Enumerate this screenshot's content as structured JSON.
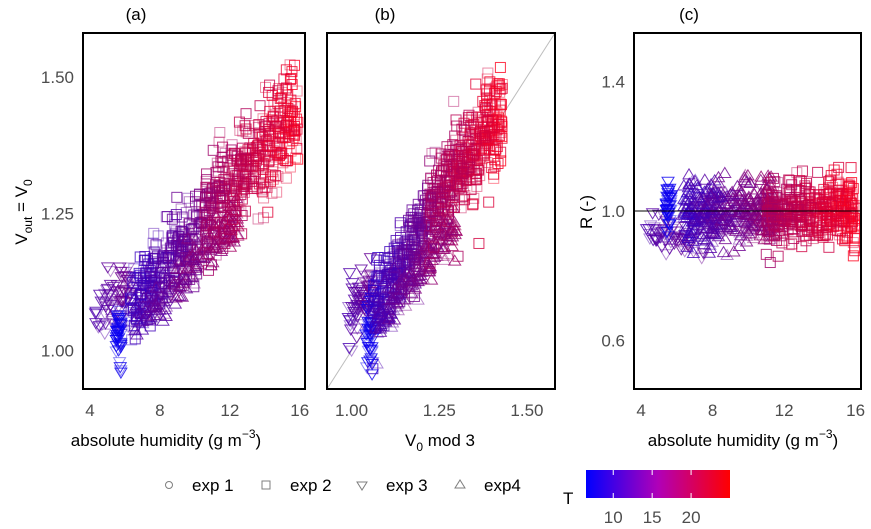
{
  "chart_data": [
    {
      "type": "scatter",
      "title": "(a)",
      "xlabel": "absolute humidity (g m",
      "xlabel_sup": "−3",
      "xlabel_close": ")",
      "ylabel_main": "V",
      "ylabel_sub": "out",
      "ylabel_mid": " = V",
      "ylabel_sub2": "0",
      "xlim": [
        3.6,
        16.3
      ],
      "ylim": [
        0.93,
        1.58
      ],
      "xticks": [
        4,
        8,
        12,
        16
      ],
      "xtick_labels": [
        "4",
        "8",
        "12",
        "16"
      ],
      "yticks": [
        1.0,
        1.25,
        1.5
      ],
      "ytick_labels": [
        "1.00",
        "1.25",
        "1.50"
      ],
      "grid": false,
      "clusters": [
        {
          "experiment": "exp 3",
          "x_range": [
            4.3,
            6.3
          ],
          "y_center_at": [
            [
              4.3,
              1.06
            ],
            [
              6.3,
              1.12
            ]
          ],
          "y_spread": 0.05,
          "T_range": [
            11,
            14
          ],
          "n": 70
        },
        {
          "experiment": "exp 3",
          "x_range": [
            5.5,
            5.8
          ],
          "y_center_at": [
            [
              5.5,
              1.03
            ],
            [
              5.8,
              1.03
            ]
          ],
          "y_spread": 0.05,
          "T_range": [
            7,
            7.5
          ],
          "n": 40
        },
        {
          "experiment": "exp 2",
          "x_range": [
            6.3,
            10.5
          ],
          "y_center_at": [
            [
              6.3,
              1.08
            ],
            [
              10.5,
              1.24
            ]
          ],
          "y_spread": 0.06,
          "T_range": [
            9,
            15
          ],
          "n": 260
        },
        {
          "experiment": "exp4",
          "x_range": [
            6.5,
            12.5
          ],
          "y_center_at": [
            [
              6.5,
              1.05
            ],
            [
              12.5,
              1.24
            ]
          ],
          "y_spread": 0.04,
          "T_range": [
            10,
            18
          ],
          "n": 220
        },
        {
          "experiment": "exp 2",
          "x_range": [
            10.5,
            15.9
          ],
          "y_center_at": [
            [
              10.5,
              1.25
            ],
            [
              15.9,
              1.43
            ]
          ],
          "y_spread": 0.08,
          "T_range": [
            15,
            23
          ],
          "n": 420
        }
      ]
    },
    {
      "type": "scatter",
      "title": "(b)",
      "xlabel_main": "V",
      "xlabel_sub": "0",
      "xlabel_rest": " mod 3",
      "xlim": [
        0.93,
        1.58
      ],
      "ylim": [
        0.93,
        1.58
      ],
      "xticks": [
        1.0,
        1.25,
        1.5
      ],
      "xtick_labels": [
        "1.00",
        "1.25",
        "1.50"
      ],
      "reference_line": "y = x (1:1)",
      "grid": false,
      "clusters": [
        {
          "experiment": "exp 3",
          "x_range": [
            0.99,
            1.06
          ],
          "y_center_at": [
            [
              0.99,
              1.06
            ],
            [
              1.06,
              1.12
            ]
          ],
          "y_spread": 0.05,
          "T_range": [
            11,
            14
          ],
          "n": 70
        },
        {
          "experiment": "exp 3",
          "x_range": [
            1.04,
            1.06
          ],
          "y_center_at": [
            [
              1.04,
              1.03
            ],
            [
              1.06,
              1.03
            ]
          ],
          "y_spread": 0.05,
          "T_range": [
            7,
            7.5
          ],
          "n": 40
        },
        {
          "experiment": "exp 2",
          "x_range": [
            1.06,
            1.22
          ],
          "y_center_at": [
            [
              1.06,
              1.08
            ],
            [
              1.22,
              1.24
            ]
          ],
          "y_spread": 0.06,
          "T_range": [
            9,
            15
          ],
          "n": 260
        },
        {
          "experiment": "exp4",
          "x_range": [
            1.07,
            1.3
          ],
          "y_center_at": [
            [
              1.07,
              1.05
            ],
            [
              1.3,
              1.24
            ]
          ],
          "y_spread": 0.04,
          "T_range": [
            10,
            18
          ],
          "n": 220
        },
        {
          "experiment": "exp 2",
          "x_range": [
            1.22,
            1.43
          ],
          "y_center_at": [
            [
              1.22,
              1.25
            ],
            [
              1.43,
              1.43
            ]
          ],
          "y_spread": 0.08,
          "T_range": [
            15,
            23
          ],
          "n": 420
        }
      ]
    },
    {
      "type": "scatter",
      "title": "(c)",
      "xlabel": "absolute humidity (g m",
      "xlabel_sup": "−3",
      "xlabel_close": ")",
      "ylabel": "R (-)",
      "xlim": [
        3.6,
        16.3
      ],
      "ylim": [
        0.45,
        1.55
      ],
      "xticks": [
        4,
        8,
        12,
        16
      ],
      "xtick_labels": [
        "4",
        "8",
        "12",
        "16"
      ],
      "yticks": [
        0.6,
        1.0,
        1.4
      ],
      "ytick_labels": [
        "0.6",
        "1.0",
        "1.4"
      ],
      "hline": 1.0,
      "grid": false,
      "clusters": [
        {
          "experiment": "exp 3",
          "x_range": [
            4.3,
            7.5
          ],
          "y_center_at": [
            [
              4.3,
              0.93
            ],
            [
              7.5,
              0.9
            ]
          ],
          "y_spread": 0.05,
          "T_range": [
            11,
            14
          ],
          "n": 60
        },
        {
          "experiment": "exp 3",
          "x_range": [
            5.4,
            5.7
          ],
          "y_center_at": [
            [
              5.4,
              1.02
            ],
            [
              5.7,
              1.02
            ]
          ],
          "y_spread": 0.07,
          "T_range": [
            7,
            7.5
          ],
          "n": 40
        },
        {
          "experiment": "exp4",
          "x_range": [
            6.3,
            11.5
          ],
          "y_center_at": [
            [
              6.3,
              1.0
            ],
            [
              11.5,
              1.0
            ]
          ],
          "y_spread": 0.09,
          "T_range": [
            9,
            17
          ],
          "n": 450
        },
        {
          "experiment": "exp 2",
          "x_range": [
            11.0,
            16.0
          ],
          "y_center_at": [
            [
              11.0,
              0.99
            ],
            [
              16.0,
              1.0
            ]
          ],
          "y_spread": 0.09,
          "T_range": [
            16,
            23
          ],
          "n": 450
        }
      ]
    }
  ],
  "legend": {
    "shapes": [
      {
        "label": "exp 1",
        "marker": "circle"
      },
      {
        "label": "exp 2",
        "marker": "square"
      },
      {
        "label": "exp 3",
        "marker": "triangle-down"
      },
      {
        "label": "exp4",
        "marker": "triangle-up"
      }
    ],
    "colorbar": {
      "title": "T",
      "ticks": [
        10,
        15,
        20
      ],
      "tick_labels": [
        "10",
        "15",
        "20"
      ],
      "range": [
        6.5,
        25
      ],
      "low_color": "#0000ff",
      "high_color": "#ff0000"
    }
  }
}
